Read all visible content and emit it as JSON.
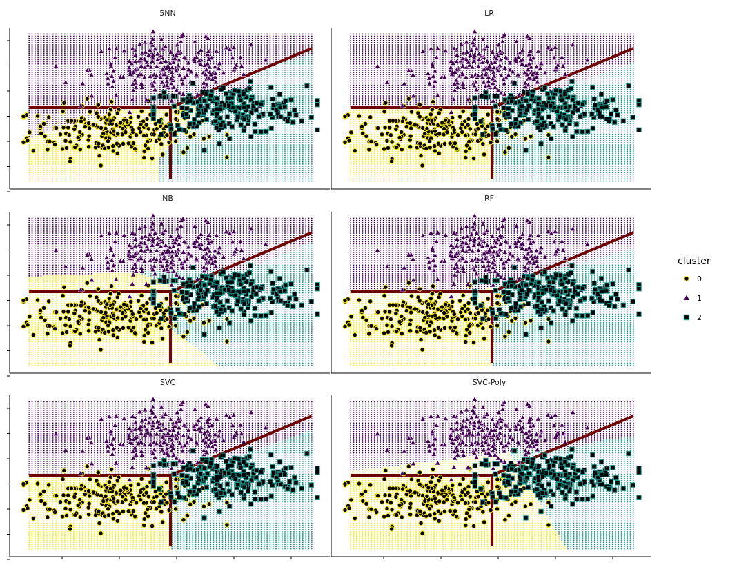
{
  "chart_data": {
    "type": "scatter",
    "description_style": "facet grid of classifier decision regions with clustered scatter overlay",
    "colors": {
      "cluster_0": "#fde725",
      "cluster_1": "#440154",
      "cluster_2": "#21918c",
      "boundary_line": "#6e0000",
      "axis": "#000000"
    },
    "legend": {
      "title": "cluster",
      "placement": "right",
      "entries": [
        {
          "label": "0",
          "marker": "circle"
        },
        {
          "label": "1",
          "marker": "triangle"
        },
        {
          "label": "2",
          "marker": "square"
        }
      ]
    },
    "x_range": [
      -2.6,
      2.6
    ],
    "y_range": [
      -3.2,
      3.2
    ],
    "ticks_labeled": false,
    "reference_lines": {
      "horizontal": {
        "y": 0,
        "x_from": -2.5,
        "x_to": 0
      },
      "vertical": {
        "x": 0,
        "y_from": -3,
        "y_to": 0
      },
      "diagonal": {
        "from": [
          0,
          0
        ],
        "to": [
          2.5,
          2.5
        ]
      }
    },
    "panels": [
      {
        "title": "5NN",
        "model": "knn"
      },
      {
        "title": "LR",
        "model": "lr"
      },
      {
        "title": "NB",
        "model": "nb"
      },
      {
        "title": "RF",
        "model": "rf"
      },
      {
        "title": "SVC",
        "model": "svc"
      },
      {
        "title": "SVC-Poly",
        "model": "poly"
      }
    ],
    "cluster_centers": [
      {
        "cluster": "0",
        "x": -1.0,
        "y": -1.0
      },
      {
        "cluster": "1",
        "x": 0.0,
        "y": 1.6
      },
      {
        "cluster": "2",
        "x": 1.0,
        "y": -0.1
      }
    ],
    "points_per_cluster": 230
  }
}
